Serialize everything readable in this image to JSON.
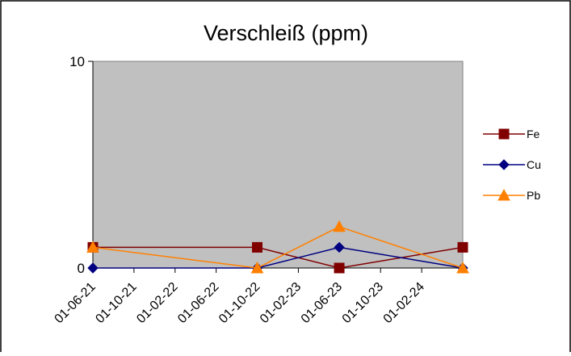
{
  "chart_data": {
    "type": "line",
    "title": "Verschleiß (ppm)",
    "xlabel": "",
    "ylabel": "",
    "x_tick_labels": [
      "01-06-21",
      "01-10-21",
      "01-02-22",
      "01-06-22",
      "01-10-22",
      "01-02-23",
      "01-06-23",
      "01-10-23",
      "01-02-24"
    ],
    "y_tick_labels": [
      "0",
      "10"
    ],
    "ylim": [
      0,
      10
    ],
    "x_range": [
      "2021-06-01",
      "2024-06-01"
    ],
    "grid": false,
    "legend_position": "right",
    "plot_background": "#c0c0c0",
    "series": [
      {
        "name": "Fe",
        "color": "#800000",
        "marker": "square",
        "x": [
          "2021-06-01",
          "2022-10-01",
          "2023-06-01",
          "2024-06-01"
        ],
        "values": [
          1,
          1,
          0,
          1
        ]
      },
      {
        "name": "Cu",
        "color": "#000080",
        "marker": "diamond",
        "x": [
          "2021-06-01",
          "2022-10-01",
          "2023-06-01",
          "2024-06-01"
        ],
        "values": [
          0,
          0,
          1,
          0
        ]
      },
      {
        "name": "Pb",
        "color": "#ff8000",
        "marker": "triangle",
        "x": [
          "2021-06-01",
          "2022-10-01",
          "2023-06-01",
          "2024-06-01"
        ],
        "values": [
          1,
          0,
          2,
          0
        ]
      }
    ]
  }
}
